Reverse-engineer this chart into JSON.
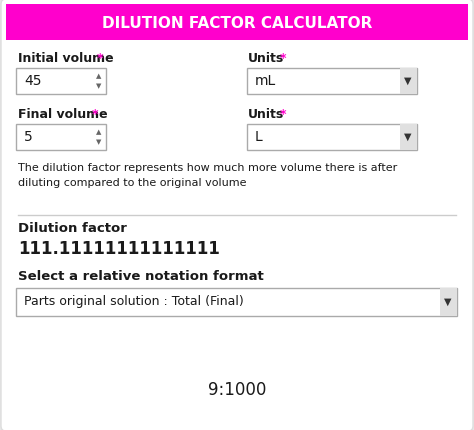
{
  "title": "DILUTION FACTOR CALCULATOR",
  "title_bg": "#FF00CC",
  "title_color": "#FFFFFF",
  "bg_color": "#FFFFFF",
  "outer_bg": "#e8e8e8",
  "label1": "Initial volume",
  "label1_star": "*",
  "label2": "Units",
  "label2_star": "*",
  "label3": "Final volume",
  "label3_star": "*",
  "label4": "Units",
  "label4_star": "*",
  "val1": "45",
  "val2": "mL",
  "val3": "5",
  "val4": "L",
  "desc": "The dilution factor represents how much more volume there is after\ndiluting compared to the original volume",
  "result_label": "Dilution factor",
  "result_value": "111.11111111111111",
  "notation_label": "Select a relative notation format",
  "notation_value": "Parts original solution : Total (Final)",
  "final_result": "9:1000",
  "label_color": "#1a1a1a",
  "star_color": "#FF00CC",
  "box_border": "#aaaaaa",
  "separator_color": "#cccccc",
  "card_bg": "#FFFFFF",
  "card_border": "#dddddd"
}
